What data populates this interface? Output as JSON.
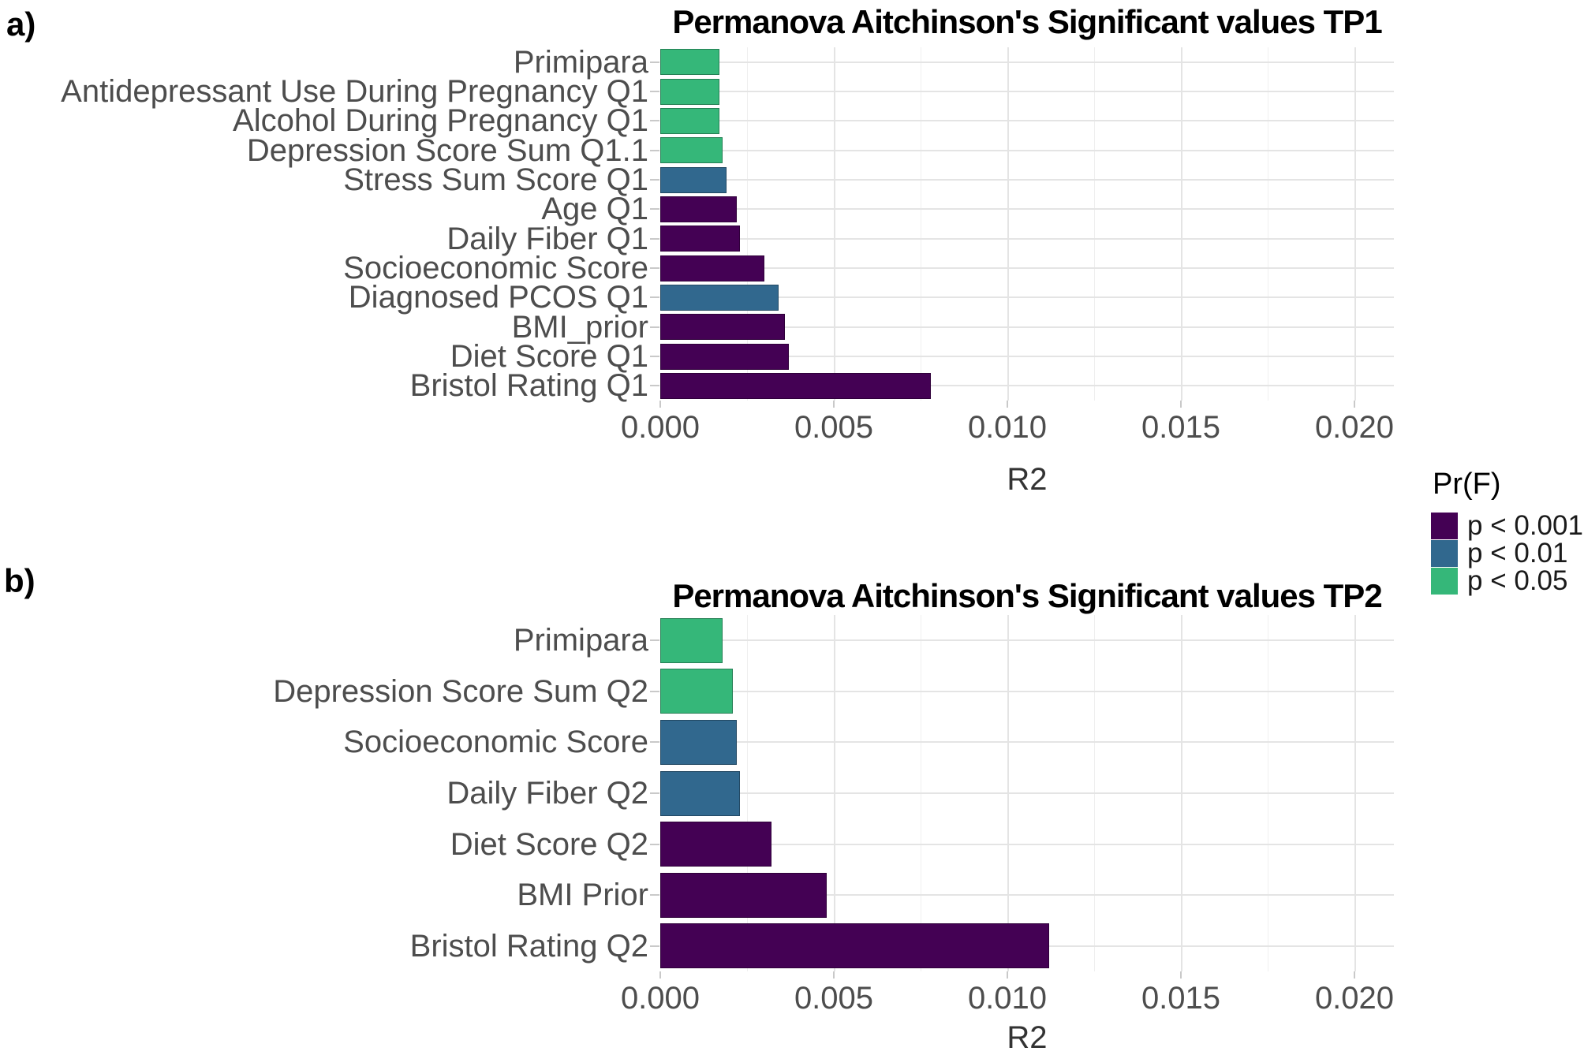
{
  "figure_labels": {
    "a": "a)",
    "b": "b)"
  },
  "legend": {
    "title": "Pr(F)",
    "entries": [
      {
        "label": "p < 0.001",
        "color": "#440154"
      },
      {
        "label": "p < 0.01",
        "color": "#31688E"
      },
      {
        "label": "p < 0.05",
        "color": "#35B779"
      }
    ]
  },
  "chart_data": [
    {
      "type": "bar",
      "orientation": "horizontal",
      "title": "Permanova Aitchinson's Significant values TP1",
      "xlabel": "R2",
      "ylabel": "",
      "xlim": [
        0,
        0.021
      ],
      "xticks": [
        0,
        0.005,
        0.01,
        0.015,
        0.02
      ],
      "xtick_labels": [
        "0.000",
        "0.005",
        "0.010",
        "0.015",
        "0.020"
      ],
      "grid": true,
      "legend_position": "right",
      "categories": [
        "Primipara",
        "Antidepressant Use During Pregnancy Q1",
        "Alcohol During Pregnancy Q1",
        "Depression Score Sum Q1.1",
        "Stress Sum Score Q1",
        "Age Q1",
        "Daily Fiber Q1",
        "Socioeconomic Score",
        "Diagnosed PCOS Q1",
        "BMI_prior",
        "Diet Score Q1",
        "Bristol Rating Q1"
      ],
      "values": [
        0.0017,
        0.0017,
        0.0017,
        0.0018,
        0.0019,
        0.0022,
        0.0023,
        0.003,
        0.0034,
        0.0036,
        0.0037,
        0.0078
      ],
      "significance": [
        "p < 0.05",
        "p < 0.05",
        "p < 0.05",
        "p < 0.05",
        "p < 0.01",
        "p < 0.001",
        "p < 0.001",
        "p < 0.001",
        "p < 0.01",
        "p < 0.001",
        "p < 0.001",
        "p < 0.001"
      ]
    },
    {
      "type": "bar",
      "orientation": "horizontal",
      "title": "Permanova Aitchinson's Significant values TP2",
      "xlabel": "R2",
      "ylabel": "",
      "xlim": [
        0,
        0.021
      ],
      "xticks": [
        0,
        0.005,
        0.01,
        0.015,
        0.02
      ],
      "xtick_labels": [
        "0.000",
        "0.005",
        "0.010",
        "0.015",
        "0.020"
      ],
      "grid": true,
      "legend_position": "right",
      "categories": [
        "Primipara",
        "Depression Score Sum Q2",
        "Socioeconomic Score",
        "Daily Fiber Q2",
        "Diet Score Q2",
        "BMI Prior",
        "Bristol Rating Q2"
      ],
      "values": [
        0.0018,
        0.0021,
        0.0022,
        0.0023,
        0.0032,
        0.0048,
        0.0112
      ],
      "significance": [
        "p < 0.05",
        "p < 0.05",
        "p < 0.01",
        "p < 0.01",
        "p < 0.001",
        "p < 0.001",
        "p < 0.001"
      ]
    }
  ]
}
